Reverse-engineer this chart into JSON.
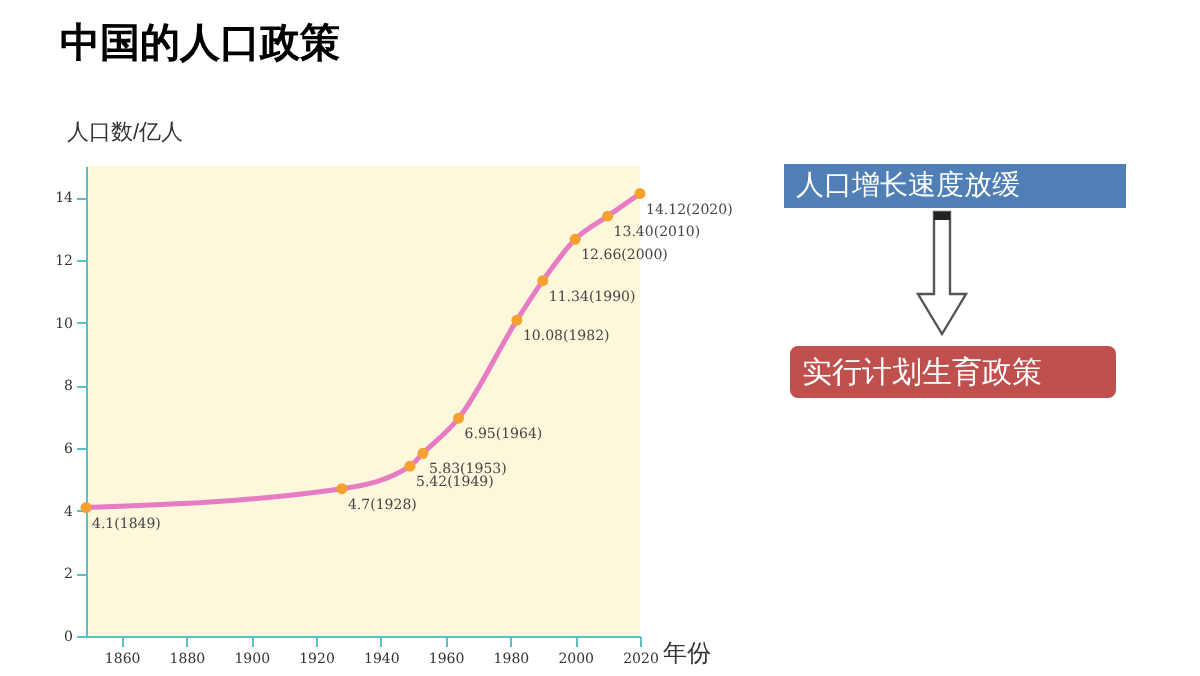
{
  "chart_data": {
    "type": "line",
    "title": "中国的人口政策",
    "xlabel": "年份",
    "ylabel": "人口数/亿人",
    "x": [
      1849,
      1928,
      1949,
      1953,
      1964,
      1982,
      1990,
      2000,
      2010,
      2020
    ],
    "values": [
      4.1,
      4.7,
      5.42,
      5.83,
      6.95,
      10.08,
      11.34,
      12.66,
      13.4,
      14.12
    ],
    "value_labels": [
      "4.1(1849)",
      "4.7(1928)",
      "5.42(1949)",
      "5.83(1953)",
      "6.95(1964)",
      "10.08(1982)",
      "11.34(1990)",
      "12.66(2000)",
      "13.40(2010)",
      "14.12(2020)"
    ],
    "color": "#e87cc4",
    "marker": "circle",
    "xlim": [
      1849,
      2020
    ],
    "ylim": [
      0,
      15
    ],
    "xticks": [
      1860,
      1880,
      1900,
      1920,
      1940,
      1960,
      1980,
      2000,
      2020
    ],
    "yticks": [
      0,
      2,
      4,
      6,
      8,
      10,
      12,
      14
    ],
    "annotations": [
      "人口增长速度放缓",
      "实行计划生育政策"
    ]
  }
}
